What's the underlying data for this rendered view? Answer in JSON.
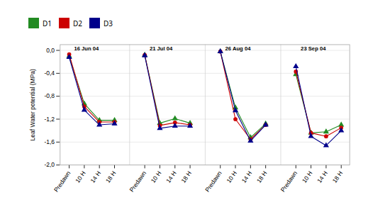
{
  "chart_data": {
    "type": "line",
    "ylabel": "Leaf Water potential (MPa)",
    "categories": [
      "Predawn",
      "10 H",
      "14 H",
      "18 H",
      null,
      "Predawn",
      "10 H",
      "14 H",
      "18 H",
      null,
      "Predawn",
      "10 H",
      "14 H",
      "18 H",
      null,
      "Predawn",
      "10 H",
      "14 H",
      "18 H"
    ],
    "series": [
      {
        "name": "D1",
        "color": "#228B22",
        "marker": "triangle",
        "values": [
          -0.1,
          -0.93,
          -1.22,
          -1.22,
          null,
          -0.08,
          -1.27,
          -1.19,
          -1.27,
          null,
          -0.02,
          -1.0,
          -1.52,
          -1.28,
          null,
          -0.42,
          -1.44,
          -1.42,
          -1.3
        ]
      },
      {
        "name": "D2",
        "color": "#cc0000",
        "marker": "circle",
        "values": [
          -0.07,
          -0.98,
          -1.25,
          -1.25,
          null,
          -0.08,
          -1.31,
          -1.26,
          -1.3,
          null,
          -0.02,
          -1.2,
          -1.55,
          -1.3,
          null,
          -0.37,
          -1.44,
          -1.5,
          -1.35
        ]
      },
      {
        "name": "D3",
        "color": "#00008b",
        "marker": "triangle",
        "values": [
          -0.12,
          -1.04,
          -1.3,
          -1.28,
          null,
          -0.09,
          -1.36,
          -1.32,
          -1.32,
          null,
          -0.02,
          -1.05,
          -1.58,
          -1.3,
          null,
          -0.28,
          -1.5,
          -1.66,
          -1.4
        ]
      }
    ],
    "annotations": [
      "16 Jun 04",
      "21 Jul 04",
      "26 Aug 04",
      "23 Sep 04"
    ],
    "ylim": [
      -2.0,
      0.1
    ],
    "yticks": [
      {
        "value": 0.0,
        "label": "0,0"
      },
      {
        "value": -0.4,
        "label": "-0,4"
      },
      {
        "value": -0.8,
        "label": "-0,8"
      },
      {
        "value": -1.2,
        "label": "-1,2"
      },
      {
        "value": -1.6,
        "label": "-1,6"
      },
      {
        "value": -2.0,
        "label": "-2,0"
      }
    ],
    "grid": true,
    "legend": "top"
  }
}
